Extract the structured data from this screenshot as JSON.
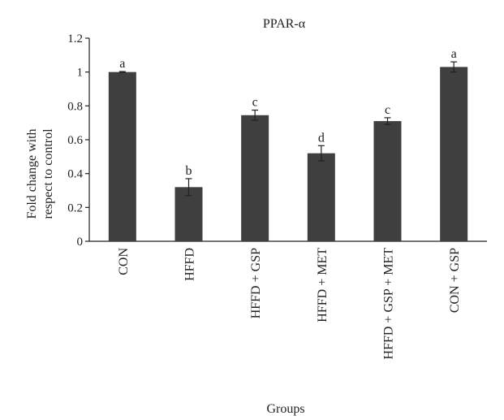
{
  "chart_data": {
    "type": "bar",
    "title": "PPAR-α",
    "xlabel": "Groups",
    "ylabel_lines": [
      "Fold change with",
      "respect to control"
    ],
    "ylim": [
      0,
      1.2
    ],
    "yticks": [
      0,
      0.2,
      0.4,
      0.6,
      0.8,
      1,
      1.2
    ],
    "ytick_labels": [
      "0",
      "0.2",
      "0.4",
      "0.6",
      "0.8",
      "1",
      "1.2"
    ],
    "categories": [
      "CON",
      "HFFD",
      "HFFD + GSP",
      "HFFD + MET",
      "HFFD + GSP + MET",
      "CON + GSP"
    ],
    "values": [
      1.0,
      0.32,
      0.745,
      0.52,
      0.71,
      1.03
    ],
    "errors": [
      0.003,
      0.05,
      0.03,
      0.045,
      0.02,
      0.03
    ],
    "significance_labels": [
      "a",
      "b",
      "c",
      "d",
      "c",
      "a"
    ],
    "bar_color": "#3f3f3f",
    "grid": false,
    "legend": "none"
  }
}
